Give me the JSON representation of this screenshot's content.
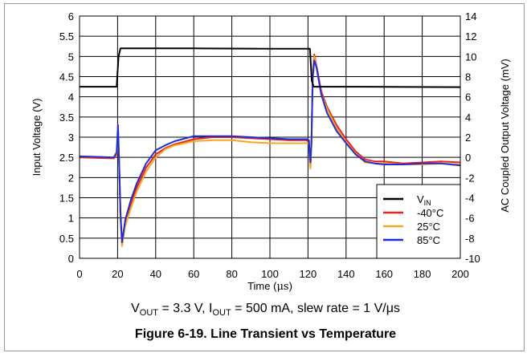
{
  "chart_data": {
    "type": "line",
    "x_axis": {
      "label_base": "Time (",
      "label_unit": "μs",
      "label_close": ")",
      "range": [
        0,
        200
      ],
      "ticks": [
        "0",
        "20",
        "40",
        "60",
        "80",
        "100",
        "120",
        "140",
        "160",
        "180",
        "200"
      ]
    },
    "y_left": {
      "label": "Input Voltage (V)",
      "range": [
        0,
        6
      ],
      "ticks": [
        "0",
        "0.5",
        "1",
        "1.5",
        "2",
        "2.5",
        "3",
        "3.5",
        "4",
        "4.5",
        "5",
        "5.5",
        "6"
      ]
    },
    "y_right": {
      "label": "AC Coupled Output Voltage (mV)",
      "range": [
        -10,
        14
      ],
      "ticks": [
        "-10",
        "-8",
        "-6",
        "-4",
        "-2",
        "0",
        "2",
        "4",
        "6",
        "8",
        "10",
        "12",
        "14"
      ]
    },
    "grid": true,
    "legend_position": "bottom-right",
    "series": [
      {
        "name_main": "V",
        "name_sub": "IN",
        "axis": "left",
        "color": "#000000",
        "points": [
          [
            0,
            4.25
          ],
          [
            19.5,
            4.25
          ],
          [
            20.5,
            5.0
          ],
          [
            21.5,
            5.2
          ],
          [
            60,
            5.2
          ],
          [
            100,
            5.19
          ],
          [
            120,
            5.19
          ],
          [
            121,
            5.19
          ],
          [
            122,
            4.4
          ],
          [
            123,
            4.25
          ],
          [
            150,
            4.25
          ],
          [
            200,
            4.24
          ]
        ]
      },
      {
        "name": "-40°C",
        "axis": "right",
        "color": "#e6211e",
        "points": [
          [
            0,
            0
          ],
          [
            18,
            -0.1
          ],
          [
            19.5,
            0.3
          ],
          [
            20.2,
            2.2
          ],
          [
            20.8,
            -0.5
          ],
          [
            21.5,
            -6
          ],
          [
            22.3,
            -8.6
          ],
          [
            24,
            -6.5
          ],
          [
            27,
            -4.6
          ],
          [
            30,
            -3
          ],
          [
            35,
            -1
          ],
          [
            40,
            0.3
          ],
          [
            45,
            0.9
          ],
          [
            50,
            1.3
          ],
          [
            60,
            1.8
          ],
          [
            70,
            2
          ],
          [
            80,
            2
          ],
          [
            90,
            1.9
          ],
          [
            100,
            1.8
          ],
          [
            110,
            1.7
          ],
          [
            119,
            1.7
          ],
          [
            120.5,
            1.6
          ],
          [
            121,
            -0.2
          ],
          [
            121.3,
            -0.5
          ],
          [
            121.8,
            1.5
          ],
          [
            122.5,
            8.5
          ],
          [
            123.3,
            10.2
          ],
          [
            124.5,
            9
          ],
          [
            127,
            6.5
          ],
          [
            130,
            5
          ],
          [
            135,
            3.2
          ],
          [
            140,
            1.8
          ],
          [
            145,
            0.6
          ],
          [
            150,
            -0.2
          ],
          [
            155,
            -0.4
          ],
          [
            160,
            -0.4
          ],
          [
            170,
            -0.6
          ],
          [
            180,
            -0.5
          ],
          [
            190,
            -0.4
          ],
          [
            200,
            -0.5
          ]
        ]
      },
      {
        "name": "25°C",
        "axis": "right",
        "color": "#f5a623",
        "points": [
          [
            0,
            0.1
          ],
          [
            18,
            0
          ],
          [
            19.5,
            0.4
          ],
          [
            20.2,
            2.4
          ],
          [
            20.8,
            -0.4
          ],
          [
            21.5,
            -5.8
          ],
          [
            22.3,
            -8.8
          ],
          [
            24,
            -6.8
          ],
          [
            27,
            -5
          ],
          [
            30,
            -3.4
          ],
          [
            35,
            -1.4
          ],
          [
            40,
            0
          ],
          [
            45,
            0.8
          ],
          [
            50,
            1.2
          ],
          [
            60,
            1.6
          ],
          [
            70,
            1.7
          ],
          [
            80,
            1.7
          ],
          [
            90,
            1.5
          ],
          [
            100,
            1.4
          ],
          [
            110,
            1.4
          ],
          [
            119,
            1.4
          ],
          [
            120.5,
            1.4
          ],
          [
            121,
            -0.8
          ],
          [
            121.3,
            -1.1
          ],
          [
            121.8,
            1.3
          ],
          [
            122.5,
            8.2
          ],
          [
            123.3,
            10
          ],
          [
            124.5,
            8.8
          ],
          [
            127,
            6.2
          ],
          [
            130,
            4.8
          ],
          [
            135,
            2.9
          ],
          [
            140,
            1.5
          ],
          [
            145,
            0.4
          ],
          [
            150,
            -0.5
          ],
          [
            155,
            -0.6
          ],
          [
            160,
            -0.6
          ],
          [
            170,
            -0.7
          ],
          [
            180,
            -0.7
          ],
          [
            190,
            -0.6
          ],
          [
            200,
            -0.7
          ]
        ]
      },
      {
        "name": "85°C",
        "axis": "right",
        "color": "#1f2dd6",
        "points": [
          [
            0,
            0.1
          ],
          [
            18,
            0
          ],
          [
            19.5,
            0.5
          ],
          [
            20.2,
            3.2
          ],
          [
            20.8,
            -0.4
          ],
          [
            21.5,
            -5.5
          ],
          [
            22.3,
            -8.4
          ],
          [
            24,
            -6.2
          ],
          [
            27,
            -4.2
          ],
          [
            30,
            -2.6
          ],
          [
            35,
            -0.6
          ],
          [
            40,
            0.7
          ],
          [
            45,
            1.2
          ],
          [
            50,
            1.6
          ],
          [
            60,
            2.1
          ],
          [
            70,
            2.1
          ],
          [
            80,
            2.1
          ],
          [
            90,
            2
          ],
          [
            100,
            1.9
          ],
          [
            110,
            1.8
          ],
          [
            119,
            1.8
          ],
          [
            120.5,
            1.7
          ],
          [
            121,
            -0.1
          ],
          [
            121.3,
            -0.5
          ],
          [
            121.8,
            1.4
          ],
          [
            122.5,
            7.8
          ],
          [
            123.3,
            9.6
          ],
          [
            124.5,
            8.9
          ],
          [
            127,
            6.2
          ],
          [
            130,
            4.4
          ],
          [
            135,
            2.6
          ],
          [
            140,
            1.4
          ],
          [
            145,
            0.3
          ],
          [
            150,
            -0.4
          ],
          [
            155,
            -0.6
          ],
          [
            160,
            -0.7
          ],
          [
            170,
            -0.7
          ],
          [
            180,
            -0.6
          ],
          [
            190,
            -0.6
          ],
          [
            200,
            -0.8
          ]
        ]
      }
    ]
  },
  "conditions": {
    "vout_main": "V",
    "vout_sub": "OUT",
    "vout_rest": " = 3.3 V, ",
    "iout_main": "I",
    "iout_sub": "OUT",
    "iout_rest": " = 500 mA, slew rate = 1 V/μs"
  },
  "caption": "Figure 6-19. Line Transient vs Temperature"
}
